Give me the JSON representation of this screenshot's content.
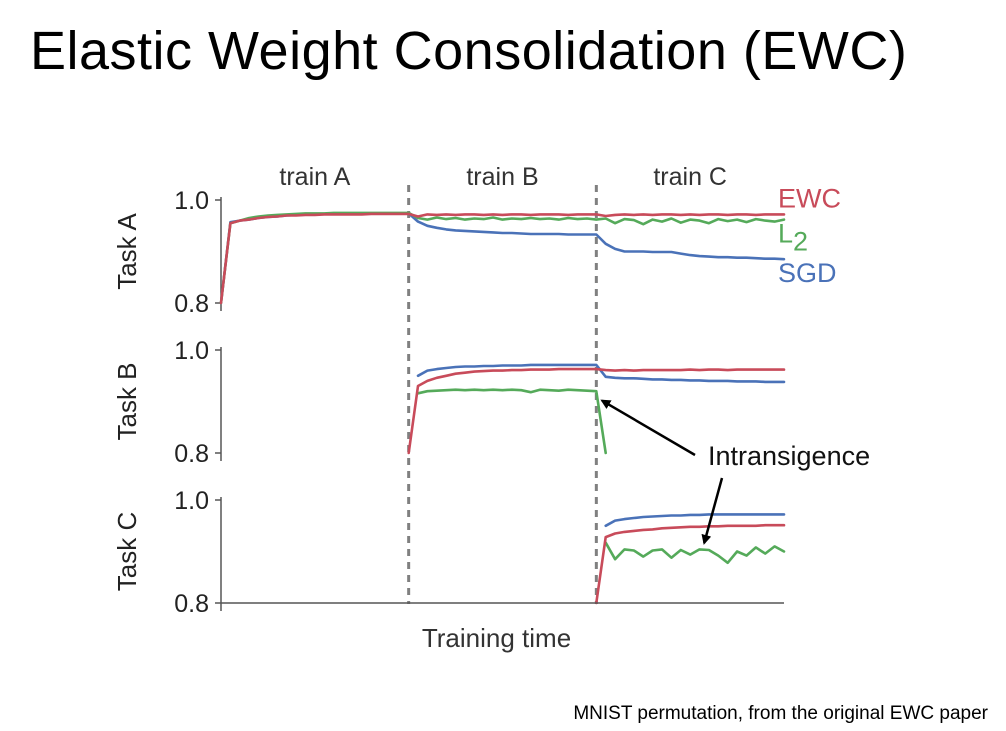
{
  "slide": {
    "title": "Elastic Weight Consolidation (EWC)",
    "caption": "MNIST permutation, from the original EWC paper"
  },
  "colors": {
    "EWC": "#c84b5a",
    "L2": "#55aa5a",
    "SGD": "#4a72b8",
    "axis": "#555555",
    "divider": "#808080"
  },
  "chart_data": {
    "type": "line",
    "xlabel": "Training time",
    "x": [
      0,
      1,
      2,
      3,
      4,
      5,
      6,
      7,
      8,
      9,
      10,
      11,
      12,
      13,
      14,
      15,
      16,
      17,
      18,
      19,
      20,
      21,
      22,
      23,
      24,
      25,
      26,
      27,
      28,
      29,
      30,
      31,
      32,
      33,
      34,
      35,
      36,
      37,
      38,
      39,
      40,
      41,
      42,
      43,
      44,
      45,
      46,
      47,
      48,
      49,
      50,
      51,
      52,
      53,
      54,
      55,
      56,
      57,
      58,
      59,
      60
    ],
    "xlim": [
      0,
      60
    ],
    "phases": [
      {
        "label": "train A",
        "start": 0,
        "end": 20
      },
      {
        "label": "train B",
        "start": 20,
        "end": 40
      },
      {
        "label": "train C",
        "start": 40,
        "end": 60
      }
    ],
    "legend": [
      {
        "key": "EWC",
        "label": "EWC",
        "sub": ""
      },
      {
        "key": "L2",
        "label": "L",
        "sub": "2"
      },
      {
        "key": "SGD",
        "label": "SGD",
        "sub": ""
      }
    ],
    "annotation": {
      "text": "Intransigence",
      "arrow_targets": [
        {
          "panel": 1,
          "x": 40.3,
          "y": 0.855
        },
        {
          "panel": 2,
          "x": 51.5,
          "y": 0.905
        }
      ]
    },
    "panels": [
      {
        "ylabel": "Task A",
        "ylim": [
          0.8,
          1.0
        ],
        "yticks": [
          "1.0",
          "0.8"
        ],
        "series": [
          {
            "name": "SGD",
            "values": [
              0.8,
              0.957,
              0.96,
              0.962,
              0.965,
              0.967,
              0.968,
              0.97,
              0.971,
              0.972,
              0.972,
              0.973,
              0.973,
              0.973,
              0.974,
              0.974,
              0.974,
              0.974,
              0.974,
              0.974,
              0.974,
              0.958,
              0.95,
              0.946,
              0.943,
              0.941,
              0.94,
              0.939,
              0.938,
              0.937,
              0.936,
              0.936,
              0.935,
              0.934,
              0.934,
              0.934,
              0.934,
              0.933,
              0.933,
              0.933,
              0.933,
              0.915,
              0.905,
              0.9,
              0.9,
              0.9,
              0.899,
              0.899,
              0.899,
              0.896,
              0.893,
              0.891,
              0.89,
              0.889,
              0.889,
              0.888,
              0.888,
              0.887,
              0.886,
              0.886,
              0.885
            ]
          },
          {
            "name": "L2",
            "values": [
              0.8,
              0.955,
              0.96,
              0.965,
              0.968,
              0.97,
              0.971,
              0.972,
              0.973,
              0.974,
              0.974,
              0.974,
              0.975,
              0.975,
              0.975,
              0.975,
              0.975,
              0.975,
              0.975,
              0.975,
              0.975,
              0.965,
              0.962,
              0.966,
              0.963,
              0.965,
              0.962,
              0.964,
              0.963,
              0.966,
              0.962,
              0.964,
              0.963,
              0.965,
              0.963,
              0.964,
              0.962,
              0.965,
              0.963,
              0.964,
              0.962,
              0.964,
              0.955,
              0.963,
              0.961,
              0.953,
              0.962,
              0.958,
              0.964,
              0.956,
              0.962,
              0.96,
              0.955,
              0.963,
              0.959,
              0.962,
              0.957,
              0.963,
              0.96,
              0.958,
              0.962
            ]
          },
          {
            "name": "EWC",
            "values": [
              0.8,
              0.955,
              0.96,
              0.962,
              0.965,
              0.967,
              0.968,
              0.97,
              0.97,
              0.971,
              0.971,
              0.972,
              0.972,
              0.972,
              0.972,
              0.972,
              0.973,
              0.973,
              0.973,
              0.973,
              0.973,
              0.968,
              0.972,
              0.971,
              0.972,
              0.971,
              0.972,
              0.972,
              0.971,
              0.972,
              0.971,
              0.972,
              0.972,
              0.971,
              0.972,
              0.972,
              0.972,
              0.971,
              0.972,
              0.972,
              0.972,
              0.969,
              0.971,
              0.972,
              0.971,
              0.972,
              0.971,
              0.972,
              0.972,
              0.971,
              0.972,
              0.971,
              0.972,
              0.972,
              0.971,
              0.972,
              0.972,
              0.971,
              0.972,
              0.972,
              0.972
            ]
          }
        ]
      },
      {
        "ylabel": "Task B",
        "ylim": [
          0.8,
          1.0
        ],
        "yticks": [
          "1.0",
          "0.8"
        ],
        "series": [
          {
            "name": "SGD",
            "values": [
              null,
              null,
              null,
              null,
              null,
              null,
              null,
              null,
              null,
              null,
              null,
              null,
              null,
              null,
              null,
              null,
              null,
              null,
              null,
              null,
              null,
              0.95,
              0.96,
              0.963,
              0.965,
              0.967,
              0.968,
              0.968,
              0.969,
              0.969,
              0.97,
              0.97,
              0.97,
              0.971,
              0.971,
              0.971,
              0.971,
              0.971,
              0.971,
              0.971,
              0.971,
              0.948,
              0.946,
              0.945,
              0.945,
              0.944,
              0.943,
              0.943,
              0.942,
              0.942,
              0.941,
              0.941,
              0.94,
              0.94,
              0.94,
              0.939,
              0.939,
              0.939,
              0.938,
              0.938,
              0.938
            ]
          },
          {
            "name": "L2",
            "values": [
              null,
              null,
              null,
              null,
              null,
              null,
              null,
              null,
              null,
              null,
              null,
              null,
              null,
              null,
              null,
              null,
              null,
              null,
              null,
              null,
              null,
              0.916,
              0.92,
              0.921,
              0.922,
              0.923,
              0.922,
              0.923,
              0.922,
              0.923,
              0.922,
              0.923,
              0.922,
              0.918,
              0.923,
              0.922,
              0.921,
              0.923,
              0.922,
              0.921,
              0.92,
              0.8,
              null,
              null,
              null,
              null,
              null,
              null,
              null,
              null,
              null,
              null,
              null,
              null,
              null,
              null,
              null,
              null,
              null,
              null,
              null
            ]
          },
          {
            "name": "EWC",
            "values": [
              null,
              null,
              null,
              null,
              null,
              null,
              null,
              null,
              null,
              null,
              null,
              null,
              null,
              null,
              null,
              null,
              null,
              null,
              null,
              null,
              0.8,
              0.93,
              0.94,
              0.946,
              0.95,
              0.954,
              0.956,
              0.958,
              0.959,
              0.96,
              0.96,
              0.961,
              0.961,
              0.962,
              0.962,
              0.962,
              0.963,
              0.963,
              0.963,
              0.963,
              0.963,
              0.961,
              0.96,
              0.961,
              0.96,
              0.961,
              0.961,
              0.961,
              0.961,
              0.961,
              0.962,
              0.961,
              0.962,
              0.962,
              0.961,
              0.962,
              0.962,
              0.962,
              0.962,
              0.962,
              0.962
            ]
          }
        ]
      },
      {
        "ylabel": "Task C",
        "ylim": [
          0.8,
          1.0
        ],
        "yticks": [
          "1.0",
          "0.8"
        ],
        "series": [
          {
            "name": "SGD",
            "values": [
              null,
              null,
              null,
              null,
              null,
              null,
              null,
              null,
              null,
              null,
              null,
              null,
              null,
              null,
              null,
              null,
              null,
              null,
              null,
              null,
              null,
              null,
              null,
              null,
              null,
              null,
              null,
              null,
              null,
              null,
              null,
              null,
              null,
              null,
              null,
              null,
              null,
              null,
              null,
              null,
              null,
              0.95,
              0.96,
              0.963,
              0.965,
              0.967,
              0.968,
              0.969,
              0.97,
              0.97,
              0.971,
              0.971,
              0.972,
              0.972,
              0.972,
              0.972,
              0.972,
              0.972,
              0.972,
              0.972,
              0.972
            ]
          },
          {
            "name": "L2",
            "values": [
              null,
              null,
              null,
              null,
              null,
              null,
              null,
              null,
              null,
              null,
              null,
              null,
              null,
              null,
              null,
              null,
              null,
              null,
              null,
              null,
              null,
              null,
              null,
              null,
              null,
              null,
              null,
              null,
              null,
              null,
              null,
              null,
              null,
              null,
              null,
              null,
              null,
              null,
              null,
              null,
              null,
              0.917,
              0.885,
              0.904,
              0.902,
              0.89,
              0.902,
              0.904,
              0.888,
              0.903,
              0.894,
              0.904,
              0.903,
              0.892,
              0.878,
              0.9,
              0.892,
              0.908,
              0.896,
              0.91,
              0.9
            ]
          },
          {
            "name": "EWC",
            "values": [
              null,
              null,
              null,
              null,
              null,
              null,
              null,
              null,
              null,
              null,
              null,
              null,
              null,
              null,
              null,
              null,
              null,
              null,
              null,
              null,
              null,
              null,
              null,
              null,
              null,
              null,
              null,
              null,
              null,
              null,
              null,
              null,
              null,
              null,
              null,
              null,
              null,
              null,
              null,
              null,
              0.8,
              0.928,
              0.935,
              0.938,
              0.94,
              0.942,
              0.943,
              0.945,
              0.946,
              0.947,
              0.948,
              0.948,
              0.949,
              0.949,
              0.95,
              0.95,
              0.95,
              0.95,
              0.951,
              0.951,
              0.951
            ]
          }
        ]
      }
    ]
  }
}
